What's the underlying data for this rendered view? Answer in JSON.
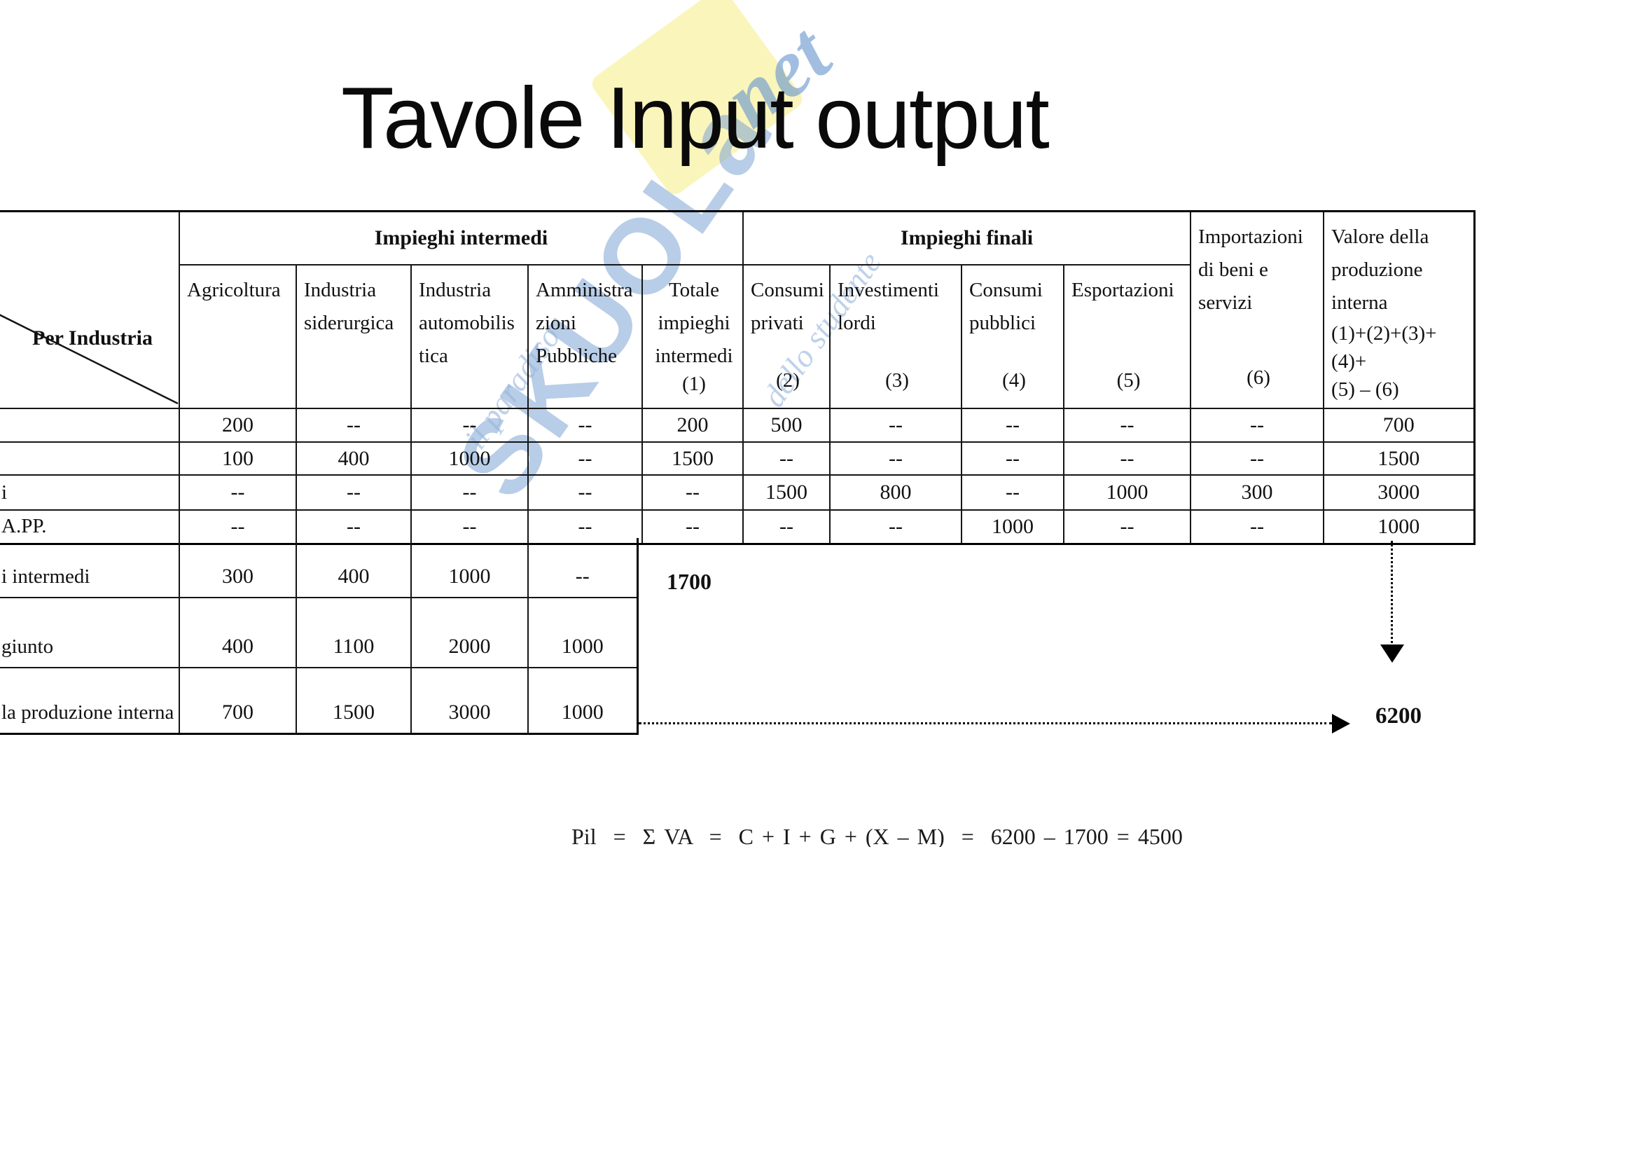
{
  "title": "Tavole Input output",
  "watermark": {
    "brand": "SKUOLa",
    "brand_suffix": "net",
    "tagline_left": "il paradiso",
    "tagline_right": "dello studente",
    "blue": "#7ea4d3",
    "pale_yellow": "#faf5bb"
  },
  "table": {
    "corner_label": "Per Industria",
    "group_intermediate": "Impieghi intermedi",
    "group_final": "Impieghi finali",
    "imports_title": "Importazioni\ndi beni e\nservizi",
    "imports_index": "(6)",
    "production_title": "Valore della\nproduzione\ninterna",
    "production_formula": "(1)+(2)+(3)+(4)+\n(5) – (6)",
    "columns": [
      {
        "title": "Agricoltura",
        "index": "",
        "align": "left"
      },
      {
        "title": "Industria\nsiderurgica",
        "index": "",
        "align": "left"
      },
      {
        "title": "Industria\nautomobilis\ntica",
        "index": "",
        "align": "left"
      },
      {
        "title": "Amministra\nzioni\nPubbliche",
        "index": "",
        "align": "left"
      },
      {
        "title": "Totale\nimpieghi\nintermedi",
        "index": "(1)",
        "align": "center"
      },
      {
        "title": "Consumi\nprivati",
        "index": "(2)",
        "align": "left"
      },
      {
        "title": "Investimenti\nlordi",
        "index": "(3)",
        "align": "left"
      },
      {
        "title": "Consumi\npubblici",
        "index": "(4)",
        "align": "left"
      },
      {
        "title": "Esportazioni",
        "index": "(5)",
        "align": "left"
      }
    ],
    "rows": [
      {
        "label": "",
        "cells": [
          "200",
          "--",
          "--",
          "--",
          "200",
          "500",
          "--",
          "--",
          "--",
          "--",
          "700"
        ]
      },
      {
        "label": "",
        "cells": [
          "100",
          "400",
          "1000",
          "--",
          "1500",
          "--",
          "--",
          "--",
          "--",
          "--",
          "1500"
        ]
      },
      {
        "label": "i",
        "cells": [
          "--",
          "--",
          "--",
          "--",
          "--",
          "1500",
          "800",
          "--",
          "1000",
          "300",
          "3000"
        ]
      },
      {
        "label": "A.PP.",
        "cells": [
          "--",
          "--",
          "--",
          "--",
          "--",
          "--",
          "--",
          "1000",
          "--",
          "--",
          "1000"
        ]
      }
    ],
    "bottom_rows": [
      {
        "label": "i intermedi",
        "cells": [
          "300",
          "400",
          "1000",
          "--"
        ]
      },
      {
        "label": "giunto",
        "cells": [
          "400",
          "1100",
          "2000",
          "1000"
        ]
      },
      {
        "label": "la produzione interna",
        "cells": [
          "700",
          "1500",
          "3000",
          "1000"
        ]
      }
    ],
    "intermediate_total": "1700",
    "production_total": "6200"
  },
  "formula": "Pil  =  Σ VA  =  C + I + G + (X – M)  =  6200 – 1700 = 4500"
}
